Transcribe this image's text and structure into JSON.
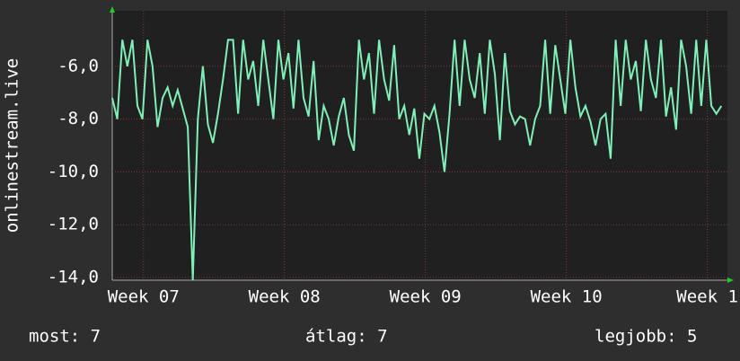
{
  "chart_data": {
    "type": "line",
    "y_label": "onlinestream.live",
    "color": "#7ff0b8",
    "grid": true,
    "xlim": [
      0,
      30.55
    ],
    "xticks": [
      {
        "value": 1.55,
        "label": "Week 07"
      },
      {
        "value": 8.55,
        "label": "Week 08"
      },
      {
        "value": 15.55,
        "label": "Week 09"
      },
      {
        "value": 22.55,
        "label": "Week 10"
      },
      {
        "value": 29.55,
        "label": "Week 1"
      }
    ],
    "ylim": [
      -14.1,
      -3.9
    ],
    "yticks": [
      {
        "value": -14,
        "label": "-14,0"
      },
      {
        "value": -12,
        "label": "-12,0"
      },
      {
        "value": -10,
        "label": "-10,0"
      },
      {
        "value": -8,
        "label": "-8,0"
      },
      {
        "value": -6,
        "label": "-6,0"
      }
    ],
    "x": [
      0,
      0.25,
      0.5,
      0.75,
      1,
      1.25,
      1.5,
      1.75,
      2,
      2.25,
      2.5,
      2.75,
      3,
      3.25,
      3.5,
      3.75,
      4,
      4.25,
      4.5,
      4.75,
      5,
      5.25,
      5.5,
      5.75,
      6,
      6.25,
      6.5,
      6.75,
      7,
      7.25,
      7.5,
      7.75,
      8,
      8.25,
      8.5,
      8.75,
      9,
      9.25,
      9.5,
      9.75,
      10,
      10.25,
      10.5,
      10.75,
      11,
      11.25,
      11.5,
      11.75,
      12,
      12.25,
      12.5,
      12.75,
      13,
      13.25,
      13.5,
      13.75,
      14,
      14.25,
      14.5,
      14.75,
      15,
      15.25,
      15.5,
      15.75,
      16,
      16.25,
      16.5,
      16.75,
      17,
      17.25,
      17.5,
      17.75,
      18,
      18.25,
      18.5,
      18.75,
      19,
      19.25,
      19.5,
      19.75,
      20,
      20.25,
      20.5,
      20.75,
      21,
      21.25,
      21.5,
      21.75,
      22,
      22.25,
      22.5,
      22.75,
      23,
      23.25,
      23.5,
      23.75,
      24,
      24.25,
      24.5,
      24.75,
      25,
      25.25,
      25.5,
      25.75,
      26,
      26.25,
      26.5,
      26.75,
      27,
      27.25,
      27.5,
      27.75,
      28,
      28.25,
      28.5,
      28.75,
      29,
      29.25,
      29.5,
      29.75,
      30,
      30.25
    ],
    "values": [
      -7.2,
      -8,
      -5,
      -6,
      -5,
      -7.5,
      -8,
      -5,
      -6,
      -8.3,
      -7.2,
      -6.8,
      -7.5,
      -6.9,
      -7.6,
      -8.3,
      -14.1,
      -8,
      -6,
      -8.2,
      -8.9,
      -7.8,
      -6.5,
      -5,
      -5,
      -7.8,
      -5,
      -6.5,
      -5.8,
      -7.5,
      -5,
      -6.5,
      -8,
      -5,
      -6.5,
      -5.5,
      -7.6,
      -5,
      -7.2,
      -7.9,
      -5.8,
      -8.8,
      -7.5,
      -8,
      -9,
      -7.9,
      -7.2,
      -8.6,
      -9.2,
      -5,
      -6.5,
      -5.5,
      -7.8,
      -5,
      -6.5,
      -7.3,
      -5.2,
      -8,
      -7.5,
      -8.6,
      -7.6,
      -9.5,
      -7.8,
      -8,
      -7.5,
      -8.5,
      -10,
      -7.8,
      -5,
      -7.5,
      -5,
      -6.5,
      -7.2,
      -5.5,
      -7.8,
      -5,
      -6.3,
      -8.8,
      -5.5,
      -7.7,
      -8.2,
      -7.9,
      -8,
      -9,
      -8,
      -7.5,
      -5,
      -7.8,
      -5.2,
      -6.5,
      -7.8,
      -5,
      -6.8,
      -7.9,
      -7.5,
      -8.1,
      -9,
      -8,
      -7.8,
      -9.5,
      -5,
      -7.5,
      -5,
      -6.5,
      -5.8,
      -7.7,
      -5,
      -6.5,
      -7.2,
      -5,
      -7.9,
      -6.8,
      -8.4,
      -5,
      -6,
      -7.8,
      -5,
      -7.5,
      -5,
      -7.5,
      -7.8,
      -7.5
    ],
    "stats": [
      "most: 7",
      "átlag: 7",
      "legjobb: 5"
    ]
  }
}
